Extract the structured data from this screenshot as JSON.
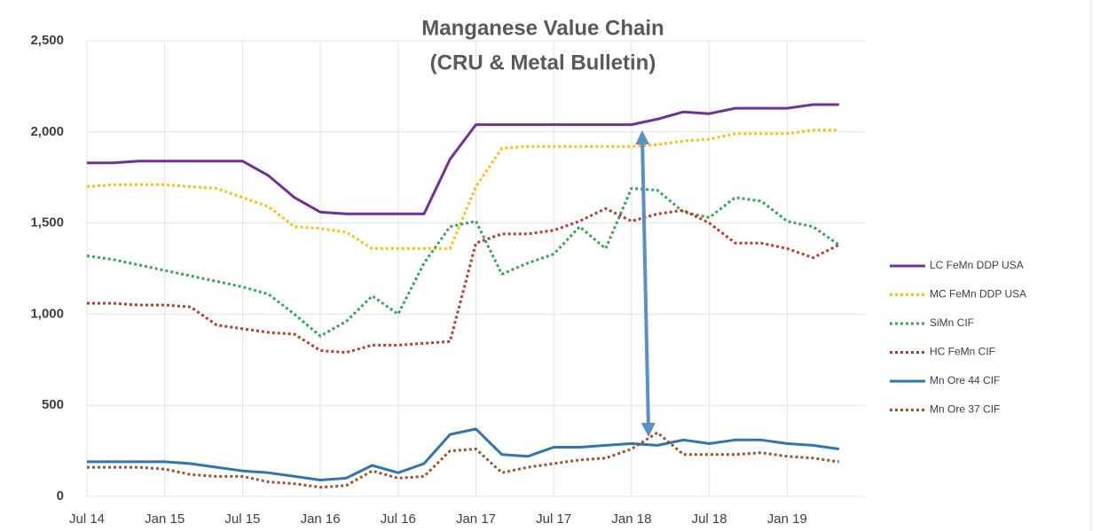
{
  "chart_data": {
    "type": "line",
    "title": "Manganese Value Chain",
    "subtitle": "(CRU & Metal Bulletin)",
    "x": [
      0,
      2,
      4,
      6,
      8,
      10,
      12,
      14,
      16,
      18,
      20,
      22,
      24,
      26,
      28,
      30,
      32,
      34,
      36,
      38,
      40,
      42,
      44,
      46,
      48,
      50,
      52,
      54,
      56,
      58
    ],
    "xlim": [
      0,
      60
    ],
    "xticks": [
      {
        "value": 0,
        "label": "Jul 14"
      },
      {
        "value": 6,
        "label": "Jan 15"
      },
      {
        "value": 12,
        "label": "Jul 15"
      },
      {
        "value": 18,
        "label": "Jan 16"
      },
      {
        "value": 24,
        "label": "Jul 16"
      },
      {
        "value": 30,
        "label": "Jan 17"
      },
      {
        "value": 36,
        "label": "Jul 17"
      },
      {
        "value": 42,
        "label": "Jan 18"
      },
      {
        "value": 48,
        "label": "Jul 18"
      },
      {
        "value": 54,
        "label": "Jan 19"
      }
    ],
    "ylim": [
      0,
      2500
    ],
    "yticks": [
      0,
      500,
      {
        "value": 1000,
        "label": "1,000"
      },
      {
        "value": 1500,
        "label": "1,500"
      },
      {
        "value": 2000,
        "label": "2,000"
      },
      {
        "value": 2500,
        "label": "2,500"
      }
    ],
    "grid": true,
    "legend": "right",
    "series": [
      {
        "name": "LC FeMn DDP USA",
        "color": "#7030a0",
        "style": "solid",
        "values": [
          1830,
          1830,
          1840,
          1840,
          1840,
          1840,
          1840,
          1760,
          1640,
          1560,
          1550,
          1550,
          1550,
          1550,
          1850,
          2040,
          2040,
          2040,
          2040,
          2040,
          2040,
          2040,
          2070,
          2110,
          2100,
          2130,
          2130,
          2130,
          2150,
          2150
        ]
      },
      {
        "name": "MC FeMn DDP USA",
        "color": "#ffc000",
        "style": "dotted",
        "values": [
          1700,
          1710,
          1710,
          1710,
          1700,
          1690,
          1640,
          1590,
          1480,
          1470,
          1450,
          1360,
          1360,
          1360,
          1360,
          1700,
          1910,
          1920,
          1920,
          1920,
          1920,
          1920,
          1930,
          1950,
          1960,
          1990,
          1990,
          1990,
          2010,
          2010
        ]
      },
      {
        "name": "SiMn CIF",
        "color": "#33a852",
        "style": "dotted",
        "values": [
          1320,
          1300,
          1270,
          1240,
          1210,
          1180,
          1150,
          1110,
          1000,
          880,
          960,
          1100,
          1000,
          1280,
          1480,
          1510,
          1220,
          1280,
          1330,
          1480,
          1360,
          1690,
          1680,
          1560,
          1530,
          1640,
          1620,
          1510,
          1480,
          1380
        ]
      },
      {
        "name": "HC FeMn CIF",
        "color": "#c0392b",
        "style": "dotted",
        "values": [
          1060,
          1060,
          1050,
          1050,
          1040,
          940,
          920,
          900,
          890,
          800,
          790,
          830,
          830,
          840,
          850,
          1390,
          1440,
          1440,
          1460,
          1510,
          1580,
          1510,
          1550,
          1570,
          1500,
          1390,
          1390,
          1360,
          1310,
          1380
        ]
      },
      {
        "name": "Mn Ore 44 CIF",
        "color": "#2e75b6",
        "style": "solid",
        "values": [
          190,
          190,
          190,
          190,
          180,
          160,
          140,
          130,
          110,
          90,
          100,
          170,
          130,
          180,
          340,
          370,
          230,
          220,
          270,
          270,
          280,
          290,
          280,
          310,
          290,
          310,
          310,
          290,
          280,
          260
        ]
      },
      {
        "name": "Mn Ore 37 CIF",
        "color": "#a0522d",
        "style": "dotted",
        "values": [
          160,
          160,
          160,
          150,
          120,
          110,
          110,
          80,
          70,
          50,
          60,
          140,
          100,
          110,
          250,
          260,
          130,
          160,
          180,
          200,
          210,
          260,
          350,
          230,
          230,
          230,
          240,
          220,
          210,
          190
        ]
      }
    ]
  }
}
